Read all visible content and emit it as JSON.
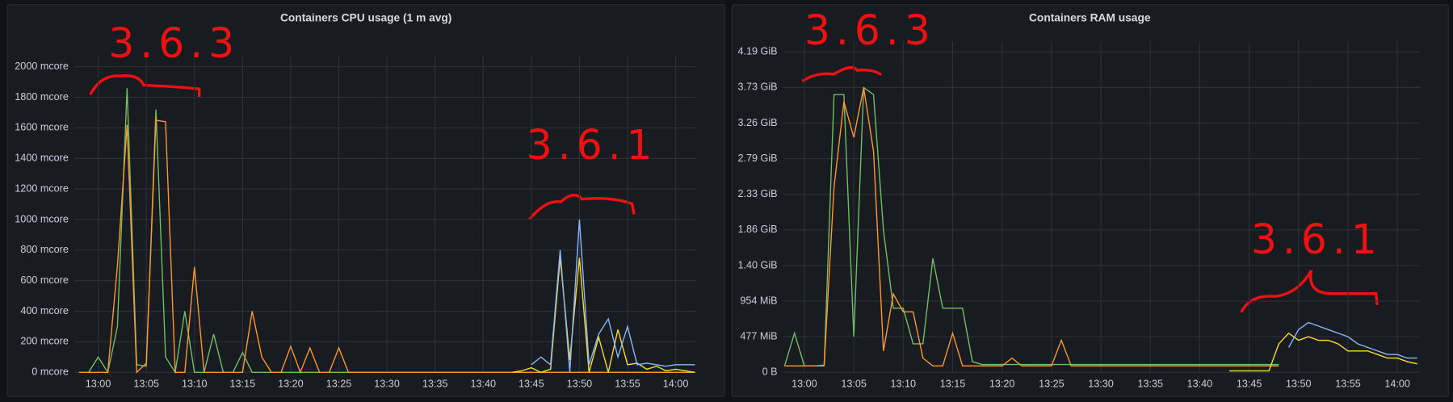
{
  "chart_data": [
    {
      "type": "line",
      "title": "Containers CPU usage (1 m avg)",
      "grid": true,
      "annotations": [
        "3.6.3",
        "3.6.1"
      ],
      "xlim": [
        777.5,
        842.2
      ],
      "ylim": [
        0,
        2073
      ],
      "xticks": [
        {
          "value": 780,
          "label": "13:00"
        },
        {
          "value": 785,
          "label": "13:05"
        },
        {
          "value": 790,
          "label": "13:10"
        },
        {
          "value": 795,
          "label": "13:15"
        },
        {
          "value": 800,
          "label": "13:20"
        },
        {
          "value": 805,
          "label": "13:25"
        },
        {
          "value": 810,
          "label": "13:30"
        },
        {
          "value": 815,
          "label": "13:35"
        },
        {
          "value": 820,
          "label": "13:40"
        },
        {
          "value": 825,
          "label": "13:45"
        },
        {
          "value": 830,
          "label": "13:50"
        },
        {
          "value": 835,
          "label": "13:55"
        },
        {
          "value": 840,
          "label": "14:00"
        }
      ],
      "yticks": [
        {
          "value": 0,
          "label": "0 mcore"
        },
        {
          "value": 200,
          "label": "200 mcore"
        },
        {
          "value": 400,
          "label": "400 mcore"
        },
        {
          "value": 600,
          "label": "600 mcore"
        },
        {
          "value": 800,
          "label": "800 mcore"
        },
        {
          "value": 1000,
          "label": "1000 mcore"
        },
        {
          "value": 1200,
          "label": "1200 mcore"
        },
        {
          "value": 1400,
          "label": "1400 mcore"
        },
        {
          "value": 1600,
          "label": "1600 mcore"
        },
        {
          "value": 1800,
          "label": "1800 mcore"
        },
        {
          "value": 2000,
          "label": "2000 mcore"
        }
      ],
      "x": [
        778,
        779,
        780,
        781,
        782,
        783,
        784,
        785,
        786,
        787,
        788,
        789,
        790,
        791,
        792,
        793,
        794,
        795,
        796,
        797,
        798,
        799,
        800,
        801,
        802,
        803,
        804,
        805,
        806,
        807,
        808,
        809,
        810,
        811,
        812,
        813,
        814,
        815,
        816,
        817,
        818,
        819,
        820,
        821,
        822,
        823,
        824,
        825,
        826,
        827,
        828,
        829,
        830,
        831,
        832,
        833,
        834,
        835,
        836,
        837,
        838,
        839,
        840,
        841,
        842
      ],
      "series": [
        {
          "color": "#73bf69",
          "values": [
            0,
            0,
            100,
            0,
            300,
            1860,
            50,
            40,
            1720,
            100,
            0,
            400,
            0,
            0,
            250,
            0,
            0,
            130,
            0,
            0,
            0,
            0,
            0,
            0,
            0,
            0,
            0,
            0,
            0,
            0,
            0,
            0,
            0,
            0,
            0,
            0,
            0,
            0,
            0,
            0,
            0,
            0,
            0,
            0,
            0,
            0,
            0,
            0,
            0,
            0,
            0,
            0,
            0,
            0,
            0,
            0,
            0,
            0,
            0,
            0,
            0,
            0,
            0,
            0,
            0
          ]
        },
        {
          "color": "#ff9830",
          "values": [
            0,
            0,
            0,
            0,
            700,
            1620,
            0,
            60,
            1650,
            1640,
            0,
            0,
            690,
            0,
            0,
            0,
            0,
            0,
            400,
            100,
            0,
            0,
            170,
            0,
            160,
            0,
            0,
            160,
            0,
            0,
            0,
            0,
            0,
            0,
            0,
            0,
            0,
            0,
            0,
            0,
            0,
            0,
            0,
            0,
            0,
            0,
            0,
            0,
            0,
            0,
            0,
            0,
            0,
            0,
            0,
            0,
            0,
            0,
            0,
            0,
            0,
            0,
            0,
            0,
            0
          ]
        },
        {
          "color": "#fade2a",
          "values": [
            null,
            null,
            null,
            null,
            null,
            null,
            null,
            null,
            null,
            null,
            null,
            null,
            null,
            null,
            null,
            null,
            null,
            null,
            null,
            null,
            null,
            null,
            null,
            null,
            null,
            null,
            null,
            null,
            null,
            null,
            null,
            null,
            null,
            null,
            null,
            null,
            null,
            null,
            null,
            null,
            null,
            null,
            null,
            null,
            null,
            0,
            10,
            30,
            0,
            20,
            750,
            80,
            750,
            0,
            230,
            0,
            280,
            50,
            60,
            20,
            40,
            10,
            20,
            10,
            0
          ]
        },
        {
          "color": "#8ab8ff",
          "values": [
            null,
            null,
            null,
            null,
            null,
            null,
            null,
            null,
            null,
            null,
            null,
            null,
            null,
            null,
            null,
            null,
            null,
            null,
            null,
            null,
            null,
            null,
            null,
            null,
            null,
            null,
            null,
            null,
            null,
            null,
            null,
            null,
            null,
            null,
            null,
            null,
            null,
            null,
            null,
            null,
            null,
            null,
            null,
            null,
            null,
            null,
            null,
            50,
            100,
            50,
            800,
            0,
            1000,
            50,
            250,
            350,
            100,
            300,
            50,
            60,
            50,
            40,
            50,
            50,
            50
          ]
        }
      ]
    },
    {
      "type": "line",
      "title": "Containers RAM usage",
      "grid": true,
      "annotations": [
        "3.6.3",
        "3.6.1"
      ],
      "xlim": [
        777.84,
        842.25
      ],
      "ylim": [
        0,
        4643000000
      ],
      "xticks": [
        {
          "value": 780,
          "label": "13:00"
        },
        {
          "value": 785,
          "label": "13:05"
        },
        {
          "value": 790,
          "label": "13:10"
        },
        {
          "value": 795,
          "label": "13:15"
        },
        {
          "value": 800,
          "label": "13:20"
        },
        {
          "value": 805,
          "label": "13:25"
        },
        {
          "value": 810,
          "label": "13:30"
        },
        {
          "value": 815,
          "label": "13:35"
        },
        {
          "value": 820,
          "label": "13:40"
        },
        {
          "value": 825,
          "label": "13:45"
        },
        {
          "value": 830,
          "label": "13:50"
        },
        {
          "value": 835,
          "label": "13:55"
        },
        {
          "value": 840,
          "label": "14:00"
        }
      ],
      "yticks": [
        {
          "value": 0,
          "label": "0 B"
        },
        {
          "value": 500000000,
          "label": "477 MiB"
        },
        {
          "value": 1000000000,
          "label": "954 MiB"
        },
        {
          "value": 1500000000,
          "label": "1.40 GiB"
        },
        {
          "value": 2000000000,
          "label": "1.86 GiB"
        },
        {
          "value": 2500000000,
          "label": "2.33 GiB"
        },
        {
          "value": 3000000000,
          "label": "2.79 GiB"
        },
        {
          "value": 3500000000,
          "label": "3.26 GiB"
        },
        {
          "value": 4000000000,
          "label": "3.73 GiB"
        },
        {
          "value": 4500000000,
          "label": "4.19 GiB"
        }
      ],
      "x": [
        778,
        779,
        780,
        781,
        782,
        783,
        784,
        785,
        786,
        787,
        788,
        789,
        790,
        791,
        792,
        793,
        794,
        795,
        796,
        797,
        798,
        799,
        800,
        801,
        802,
        803,
        804,
        805,
        806,
        807,
        808,
        809,
        810,
        811,
        812,
        813,
        814,
        815,
        816,
        817,
        818,
        819,
        820,
        821,
        822,
        823,
        824,
        825,
        826,
        827,
        828,
        829,
        830,
        831,
        832,
        833,
        834,
        835,
        836,
        837,
        838,
        839,
        840,
        841,
        842
      ],
      "series": [
        {
          "color": "#73bf69",
          "values": [
            90000000.0,
            550000000.0,
            90000000.0,
            90000000.0,
            90000000.0,
            3900000000.0,
            3900000000.0,
            500000000.0,
            4000000000.0,
            3900000000.0,
            2000000000.0,
            900000000.0,
            900000000.0,
            400000000.0,
            400000000.0,
            1600000000.0,
            900000000.0,
            900000000.0,
            900000000.0,
            150000000.0,
            110000000.0,
            110000000.0,
            110000000.0,
            110000000.0,
            110000000.0,
            110000000.0,
            110000000.0,
            110000000.0,
            110000000.0,
            110000000.0,
            110000000.0,
            110000000.0,
            110000000.0,
            110000000.0,
            110000000.0,
            110000000.0,
            110000000.0,
            110000000.0,
            110000000.0,
            110000000.0,
            110000000.0,
            110000000.0,
            110000000.0,
            110000000.0,
            110000000.0,
            110000000.0,
            110000000.0,
            110000000.0,
            110000000.0,
            110000000.0,
            110000000.0,
            null,
            null,
            null,
            null,
            null,
            null,
            null,
            null,
            null,
            null,
            null,
            null,
            null,
            null
          ]
        },
        {
          "color": "#ff9830",
          "values": [
            90000000.0,
            90000000.0,
            90000000.0,
            90000000.0,
            100000000.0,
            2600000000.0,
            3800000000.0,
            3300000000.0,
            4000000000.0,
            3100000000.0,
            300000000.0,
            1100000000.0,
            850000000.0,
            850000000.0,
            200000000.0,
            90000000.0,
            90000000.0,
            550000000.0,
            90000000.0,
            90000000.0,
            90000000.0,
            90000000.0,
            90000000.0,
            200000000.0,
            90000000.0,
            90000000.0,
            90000000.0,
            90000000.0,
            450000000.0,
            90000000.0,
            90000000.0,
            90000000.0,
            90000000.0,
            90000000.0,
            90000000.0,
            90000000.0,
            90000000.0,
            90000000.0,
            90000000.0,
            90000000.0,
            90000000.0,
            90000000.0,
            90000000.0,
            90000000.0,
            90000000.0,
            90000000.0,
            90000000.0,
            90000000.0,
            90000000.0,
            90000000.0,
            90000000.0,
            null,
            null,
            null,
            null,
            null,
            null,
            null,
            null,
            null,
            null,
            null,
            null,
            null,
            null
          ]
        },
        {
          "color": "#fade2a",
          "values": [
            null,
            null,
            null,
            null,
            null,
            null,
            null,
            null,
            null,
            null,
            null,
            null,
            null,
            null,
            null,
            null,
            null,
            null,
            null,
            null,
            null,
            null,
            null,
            null,
            null,
            null,
            null,
            null,
            null,
            null,
            null,
            null,
            null,
            null,
            null,
            null,
            null,
            null,
            null,
            null,
            null,
            null,
            null,
            null,
            null,
            20000000.0,
            20000000.0,
            20000000.0,
            20000000.0,
            20000000.0,
            400000000.0,
            550000000.0,
            450000000.0,
            500000000.0,
            450000000.0,
            450000000.0,
            400000000.0,
            300000000.0,
            300000000.0,
            300000000.0,
            250000000.0,
            200000000.0,
            200000000.0,
            150000000.0,
            120000000.0
          ]
        },
        {
          "color": "#8ab8ff",
          "values": [
            null,
            null,
            null,
            null,
            null,
            null,
            null,
            null,
            null,
            null,
            null,
            null,
            null,
            null,
            null,
            null,
            null,
            null,
            null,
            null,
            null,
            null,
            null,
            null,
            null,
            null,
            null,
            null,
            null,
            null,
            null,
            null,
            null,
            null,
            null,
            null,
            null,
            null,
            null,
            null,
            null,
            null,
            null,
            null,
            null,
            null,
            null,
            null,
            null,
            null,
            null,
            350000000.0,
            600000000.0,
            700000000.0,
            650000000.0,
            600000000.0,
            550000000.0,
            500000000.0,
            400000000.0,
            350000000.0,
            300000000.0,
            250000000.0,
            250000000.0,
            200000000.0,
            200000000.0
          ]
        }
      ]
    }
  ]
}
